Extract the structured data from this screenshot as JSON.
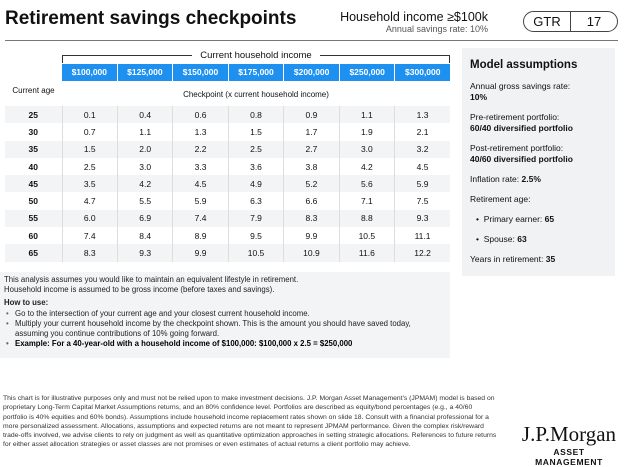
{
  "title": "Retirement savings checkpoints",
  "header": {
    "household": "Household income ≥$100k",
    "savings_rate": "Annual savings rate: 10%",
    "section": "GTR",
    "page": "17"
  },
  "table": {
    "group_label": "Current household income",
    "columns": [
      "$100,000",
      "$125,000",
      "$150,000",
      "$175,000",
      "$200,000",
      "$250,000",
      "$300,000"
    ],
    "age_header": "Current age",
    "checkpoint_header": "Checkpoint (x current household income)",
    "rows": [
      {
        "age": "25",
        "values": [
          "0.1",
          "0.4",
          "0.6",
          "0.8",
          "0.9",
          "1.1",
          "1.3"
        ]
      },
      {
        "age": "30",
        "values": [
          "0.7",
          "1.1",
          "1.3",
          "1.5",
          "1.7",
          "1.9",
          "2.1"
        ]
      },
      {
        "age": "35",
        "values": [
          "1.5",
          "2.0",
          "2.2",
          "2.5",
          "2.7",
          "3.0",
          "3.2"
        ]
      },
      {
        "age": "40",
        "values": [
          "2.5",
          "3.0",
          "3.3",
          "3.6",
          "3.8",
          "4.2",
          "4.5"
        ]
      },
      {
        "age": "45",
        "values": [
          "3.5",
          "4.2",
          "4.5",
          "4.9",
          "5.2",
          "5.6",
          "5.9"
        ]
      },
      {
        "age": "50",
        "values": [
          "4.7",
          "5.5",
          "5.9",
          "6.3",
          "6.6",
          "7.1",
          "7.5"
        ]
      },
      {
        "age": "55",
        "values": [
          "6.0",
          "6.9",
          "7.4",
          "7.9",
          "8.3",
          "8.8",
          "9.3"
        ]
      },
      {
        "age": "60",
        "values": [
          "7.4",
          "8.4",
          "8.9",
          "9.5",
          "9.9",
          "10.5",
          "11.1"
        ]
      },
      {
        "age": "65",
        "values": [
          "8.3",
          "9.3",
          "9.9",
          "10.5",
          "10.9",
          "11.6",
          "12.2"
        ]
      }
    ]
  },
  "notes": {
    "line1": "This analysis assumes you would like to maintain an equivalent lifestyle in retirement.",
    "line2": "Household income is assumed to be gross income (before taxes and savings).",
    "how_title": "How to use:",
    "bullets": [
      "Go to the intersection of your current age and your closest current household income.",
      "Multiply your current household income by the checkpoint shown. This is the amount you should have saved today, assuming you continue contributions of 10% going forward."
    ],
    "example": "Example: For a 40-year-old with a household income of $100,000: $100,000 x 2.5 = $250,000"
  },
  "assumptions": {
    "title": "Model assumptions",
    "savings_label": "Annual gross savings rate:",
    "savings_value": "10%",
    "pre_label": "Pre-retirement portfolio:",
    "pre_value": "60/40 diversified portfolio",
    "post_label": "Post-retirement portfolio:",
    "post_value": "40/60 diversified portfolio",
    "inflation_label": "Inflation rate:",
    "inflation_value": "2.5%",
    "age_label": "Retirement age:",
    "primary_label": "Primary earner:",
    "primary_value": "65",
    "spouse_label": "Spouse:",
    "spouse_value": "63",
    "years_label": "Years in retirement:",
    "years_value": "35"
  },
  "disclaimer": "This chart is for illustrative purposes only and must not be relied upon to make investment decisions. J.P. Morgan Asset Management's (JPMAM) model is based on proprietary Long-Term Capital Market Assumptions returns, and an 80% confidence level. Portfolios are described as equity/bond percentages (e.g., a 40/60 portfolio is 40% equities and 60% bonds). Assumptions include household income replacement rates shown on slide 18. Consult with a financial professional for a more personalized assessment. Allocations, assumptions and expected returns are not meant to represent JPMAM performance. Given the complex risk/reward trade-offs involved, we advise clients to rely on judgment as well as quantitative optimization approaches in setting strategic allocations. References to future returns for either asset allocation strategies or asset classes are not promises or even estimates of actual returns a client portfolio may achieve.",
  "logo": {
    "name": "J.P.Morgan",
    "sub": "ASSET MANAGEMENT"
  },
  "colors": {
    "header_blue": "#1e90f0"
  }
}
